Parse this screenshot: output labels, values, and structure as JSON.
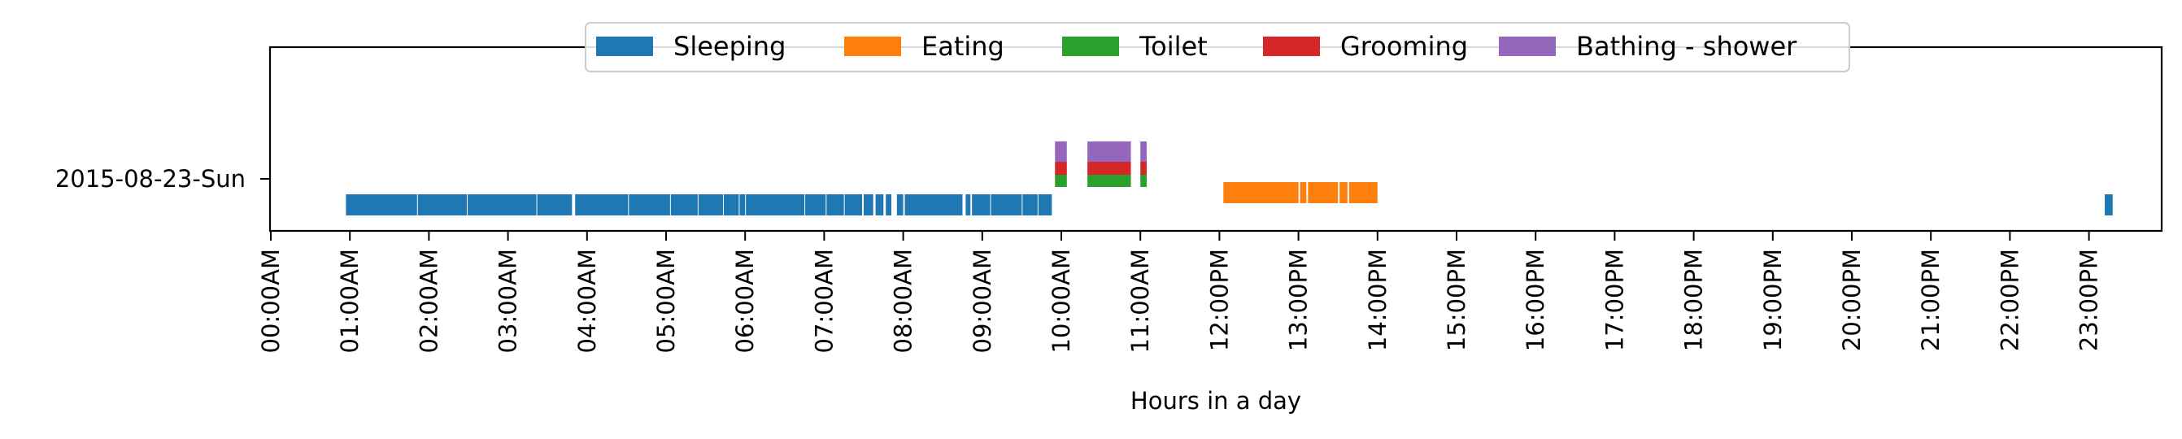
{
  "chart_data": {
    "type": "timeline",
    "title": "",
    "xlabel": "Hours in a day",
    "ylabel": "",
    "xlim_hours": [
      0,
      24
    ],
    "x_ticks": [
      "00:00AM",
      "01:00AM",
      "02:00AM",
      "03:00AM",
      "04:00AM",
      "05:00AM",
      "06:00AM",
      "07:00AM",
      "08:00AM",
      "09:00AM",
      "10:00AM",
      "11:00AM",
      "12:00PM",
      "13:00PM",
      "14:00PM",
      "15:00PM",
      "16:00PM",
      "17:00PM",
      "18:00PM",
      "19:00PM",
      "20:00PM",
      "21:00PM",
      "22:00PM",
      "23:00PM"
    ],
    "rows": [
      "2015-08-23-Sun"
    ],
    "grid": false,
    "legend_position": "top-center",
    "series": [
      {
        "name": "Sleeping",
        "color": "#1f77b4",
        "row": "2015-08-23-Sun",
        "intervals": [
          [
            0.95,
            1.85
          ],
          [
            1.86,
            2.48
          ],
          [
            2.49,
            3.36
          ],
          [
            3.37,
            3.81
          ],
          [
            3.85,
            4.52
          ],
          [
            4.53,
            5.05
          ],
          [
            5.06,
            5.4
          ],
          [
            5.41,
            5.72
          ],
          [
            5.73,
            5.92
          ],
          [
            5.93,
            6.0
          ],
          [
            6.01,
            6.75
          ],
          [
            6.76,
            7.02
          ],
          [
            7.03,
            7.25
          ],
          [
            7.26,
            7.48
          ],
          [
            7.5,
            7.62
          ],
          [
            7.65,
            7.75
          ],
          [
            7.78,
            7.85
          ],
          [
            7.92,
            8.0
          ],
          [
            8.02,
            8.75
          ],
          [
            8.79,
            8.85
          ],
          [
            8.87,
            9.1
          ],
          [
            9.11,
            9.5
          ],
          [
            9.51,
            9.7
          ],
          [
            9.71,
            9.88
          ]
        ]
      },
      {
        "name": "Sleeping",
        "color": "#1f77b4",
        "row": "2015-08-23-Sun",
        "intervals": [
          [
            23.2,
            23.3
          ]
        ]
      },
      {
        "name": "Eating",
        "color": "#ff7f0e",
        "row": "2015-08-23-Sun",
        "intervals": [
          [
            12.05,
            13.0
          ],
          [
            13.02,
            13.1
          ],
          [
            13.12,
            13.5
          ],
          [
            13.52,
            13.62
          ],
          [
            13.64,
            14.0
          ]
        ]
      },
      {
        "name": "Toilet",
        "color": "#2ca02c",
        "row": "2015-08-23-Sun",
        "intervals": [
          [
            9.92,
            10.07
          ],
          [
            10.33,
            10.88
          ],
          [
            11.0,
            11.08
          ]
        ]
      },
      {
        "name": "Grooming",
        "color": "#d62728",
        "row": "2015-08-23-Sun",
        "intervals": [
          [
            9.92,
            10.07
          ],
          [
            10.33,
            10.88
          ],
          [
            11.0,
            11.08
          ]
        ]
      },
      {
        "name": "Bathing - shower",
        "color": "#9467bd",
        "row": "2015-08-23-Sun",
        "intervals": [
          [
            9.92,
            10.07
          ],
          [
            10.33,
            10.88
          ],
          [
            11.0,
            11.08
          ]
        ]
      }
    ],
    "legend": [
      {
        "name": "Sleeping",
        "color": "#1f77b4"
      },
      {
        "name": "Eating",
        "color": "#ff7f0e"
      },
      {
        "name": "Toilet",
        "color": "#2ca02c"
      },
      {
        "name": "Grooming",
        "color": "#d62728"
      },
      {
        "name": "Bathing - shower",
        "color": "#9467bd"
      }
    ]
  }
}
